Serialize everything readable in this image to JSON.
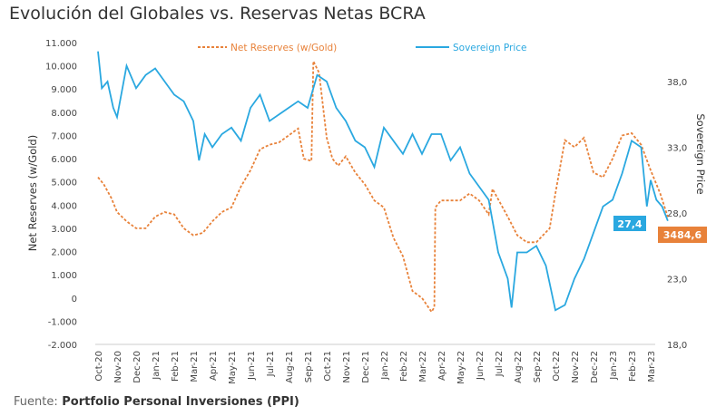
{
  "chart_data": {
    "type": "line",
    "title": "Evolución del Globales vs. Reservas Netas BCRA",
    "source_label": "Fuente:",
    "source": "Portfolio Personal Inversiones (PPI)",
    "ylabel_left": "Net Reserves (w/Gold)",
    "ylabel_right": "Sovereign Price",
    "ylim_left": [
      -2000,
      11000
    ],
    "ylim_right": [
      18,
      38
    ],
    "yticks_left": [
      "11.000",
      "10.000",
      "9.000",
      "8.000",
      "7.000",
      "6.000",
      "5.000",
      "4.000",
      "3.000",
      "2.000",
      "1.000",
      "0",
      "-1.000",
      "-2.000"
    ],
    "yticks_right": [
      "38,0",
      "33,0",
      "28,0",
      "23,0",
      "18,0"
    ],
    "categories": [
      "Oct-20",
      "Nov-20",
      "Dec-20",
      "Jan-21",
      "Feb-21",
      "Mar-21",
      "Apr-21",
      "May-21",
      "Jun-21",
      "Jul-21",
      "Aug-21",
      "Sep-21",
      "Oct-21",
      "Nov-21",
      "Dec-21",
      "Jan-22",
      "Feb-22",
      "Mar-22",
      "Apr-22",
      "May-22",
      "Jun-22",
      "Jul-22",
      "Aug-22",
      "Sep-22",
      "Oct-22",
      "Nov-22",
      "Dec-22",
      "Jan-23",
      "Feb-23",
      "Mar-23"
    ],
    "legend": [
      "Net Reserves (w/Gold)",
      "Sovereign Price"
    ],
    "legend_position": "top",
    "series": [
      {
        "name": "Net Reserves (w/Gold)",
        "axis": "left",
        "color": "#E8823A",
        "style": "dashed",
        "x": [
          0,
          0.3,
          0.7,
          1,
          1.5,
          2,
          2.5,
          3,
          3.5,
          4,
          4.5,
          5,
          5.5,
          6,
          6.5,
          7,
          7.5,
          8,
          8.5,
          9,
          9.5,
          10,
          10.5,
          10.8,
          11.2,
          11.3,
          11.6,
          12,
          12.3,
          12.6,
          13,
          13.5,
          14,
          14.5,
          15,
          15.5,
          16,
          16.5,
          17,
          17.5,
          17.65,
          17.7,
          18,
          19,
          19.5,
          20,
          20.5,
          20.7,
          21.5,
          22,
          22.5,
          23,
          23.7,
          24,
          24.5,
          25,
          25.5,
          26,
          26.5,
          27,
          27.5,
          28,
          28.5,
          29,
          29.5,
          29.9
        ],
        "values": [
          5200,
          4900,
          4300,
          3700,
          3300,
          3000,
          3000,
          3500,
          3700,
          3600,
          3000,
          2700,
          2800,
          3300,
          3700,
          3900,
          4800,
          5500,
          6400,
          6600,
          6700,
          7000,
          7300,
          6000,
          5900,
          10200,
          9700,
          6900,
          6000,
          5700,
          6100,
          5400,
          4900,
          4200,
          3900,
          2600,
          1800,
          300,
          0,
          -600,
          -400,
          3900,
          4200,
          4200,
          4500,
          4200,
          3600,
          4700,
          3500,
          2700,
          2400,
          2400,
          3000,
          4500,
          6800,
          6500,
          6900,
          5400,
          5200,
          6000,
          7000,
          7100,
          6600,
          5500,
          4500,
          3484.6
        ]
      },
      {
        "name": "Sovereign Price",
        "axis": "right",
        "color": "#2AA8E0",
        "style": "solid",
        "x": [
          0,
          0.2,
          0.5,
          0.8,
          1,
          1.5,
          2,
          2.5,
          3,
          3.5,
          4,
          4.5,
          5,
          5.3,
          5.6,
          6,
          6.5,
          7,
          7.5,
          8,
          8.5,
          9,
          9.5,
          10,
          10.5,
          11,
          11.5,
          12,
          12.5,
          13,
          13.5,
          14,
          14.5,
          15,
          15.5,
          16,
          16.5,
          17,
          17.5,
          18,
          18.5,
          19,
          19.5,
          20,
          20.5,
          21,
          21.5,
          21.7,
          22,
          22.5,
          23,
          23.5,
          24,
          24.5,
          25,
          25.5,
          26,
          26.5,
          27,
          27.5,
          28,
          28.5,
          28.8,
          29,
          29.3,
          29.6,
          29.9
        ],
        "values": [
          40.3,
          37.5,
          38,
          36,
          35.3,
          39.2,
          37.5,
          38.5,
          39,
          38,
          37,
          36.5,
          35,
          32,
          34,
          33,
          34,
          34.5,
          33.5,
          36,
          37,
          35,
          35.5,
          36,
          36.5,
          36,
          38.5,
          38,
          36,
          35,
          33.5,
          33,
          31.5,
          34.5,
          33.5,
          32.5,
          34,
          32.5,
          34,
          34,
          32,
          33,
          31,
          30,
          29,
          25,
          23,
          20.8,
          25,
          25,
          25.5,
          24,
          20.6,
          21,
          23,
          24.5,
          26.5,
          28.5,
          29,
          31,
          33.5,
          33,
          28.5,
          30.5,
          29,
          28.5,
          27.4
        ]
      }
    ],
    "end_labels": {
      "price": "27,4",
      "reserves": "3484,6"
    }
  }
}
